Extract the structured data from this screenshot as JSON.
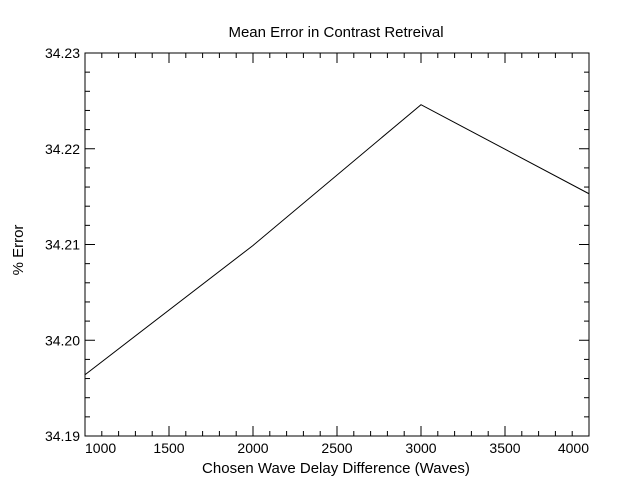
{
  "chart_data": {
    "type": "line",
    "title": "Mean Error in Contrast Retreival",
    "xlabel": "Chosen Wave Delay Difference (Waves)",
    "ylabel": "% Error",
    "xlim": [
      1000,
      4000
    ],
    "ylim": [
      34.19,
      34.23
    ],
    "x_ticks": [
      1000,
      1500,
      2000,
      2500,
      3000,
      3500,
      4000
    ],
    "x_tick_labels": [
      "1000",
      "1500",
      "2000",
      "2500",
      "3000",
      "3500",
      "4000"
    ],
    "y_ticks": [
      34.19,
      34.2,
      34.21,
      34.22,
      34.23
    ],
    "y_tick_labels": [
      "34.19",
      "34.20",
      "34.21",
      "34.22",
      "34.23"
    ],
    "x_minor_per_major": 5,
    "y_minor_per_major": 5,
    "grid": false,
    "series": [
      {
        "x": [
          1000,
          2000,
          3000,
          4000
        ],
        "y": [
          34.1964,
          34.2099,
          34.2246,
          34.2153
        ]
      }
    ]
  }
}
